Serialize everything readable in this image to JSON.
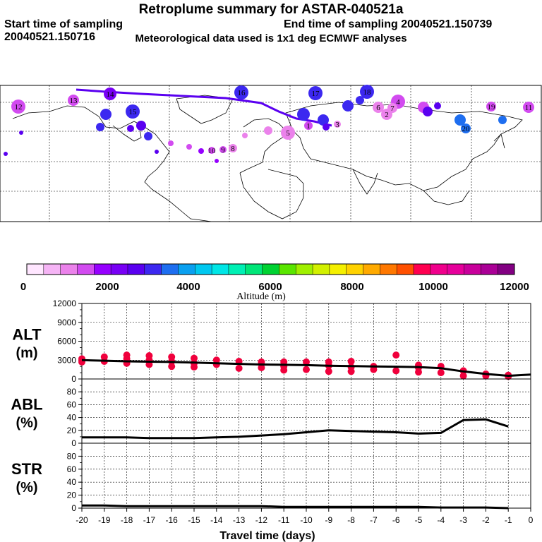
{
  "header": {
    "title": "Retroplume summary for ASTAR-040521a",
    "start_label": "Start time of sampling 20040521.150716",
    "end_label": "End time of sampling 20040521.150739",
    "met_label": "Meteorological data used is 1x1 deg ECMWF analyses"
  },
  "colorbar": {
    "colors": [
      "#ffe6ff",
      "#f5b4f5",
      "#eb82eb",
      "#d24bf0",
      "#9600ff",
      "#7800f5",
      "#5a00f0",
      "#3c28f0",
      "#1e6ef0",
      "#0aa0f0",
      "#00c8f0",
      "#00e6e6",
      "#00f0b4",
      "#00e678",
      "#00d232",
      "#5ae600",
      "#a0f000",
      "#d2f000",
      "#f5f000",
      "#ffd200",
      "#ffaa00",
      "#ff7800",
      "#ff5000",
      "#ff0050",
      "#f0008c",
      "#e6009b",
      "#c8009b",
      "#aa0096",
      "#820082"
    ],
    "tick_labels": [
      "0",
      "2000",
      "4000",
      "6000",
      "8000",
      "10000",
      "12000"
    ],
    "axis_label": "Altitude (m)"
  },
  "map": {
    "cluster_labels": [
      "12",
      "13",
      "14",
      "15",
      "16",
      "17",
      "18",
      "1",
      "2",
      "3",
      "4",
      "5",
      "6",
      "7",
      "8",
      "9",
      "10",
      "11",
      "19",
      "20"
    ]
  },
  "chart_data": [
    {
      "type": "line",
      "panel": "ALT",
      "ylabel_line1": "ALT",
      "ylabel_line2": "(m)",
      "ylim": [
        0,
        12000
      ],
      "yticks": [
        "12000",
        "9000",
        "6000",
        "3000",
        "0"
      ],
      "x": [
        -20,
        -19,
        -18,
        -17,
        -16,
        -15,
        -14,
        -13,
        -12,
        -11,
        -10,
        -9,
        -8,
        -7,
        -6,
        -5,
        -4,
        -3,
        -2,
        -1,
        0
      ],
      "series": [
        {
          "name": "mean altitude",
          "values": [
            3000,
            2900,
            2800,
            2750,
            2700,
            2600,
            2500,
            2400,
            2300,
            2250,
            2200,
            2100,
            2050,
            2000,
            1950,
            1900,
            1700,
            1200,
            800,
            500,
            700
          ]
        }
      ],
      "points": [
        {
          "x": -20,
          "y": 3200
        },
        {
          "x": -20,
          "y": 2700
        },
        {
          "x": -19,
          "y": 3500
        },
        {
          "x": -19,
          "y": 2800
        },
        {
          "x": -18,
          "y": 3800
        },
        {
          "x": -18,
          "y": 3200
        },
        {
          "x": -18,
          "y": 2500
        },
        {
          "x": -17,
          "y": 3700
        },
        {
          "x": -17,
          "y": 3000
        },
        {
          "x": -17,
          "y": 2300
        },
        {
          "x": -16,
          "y": 3500
        },
        {
          "x": -16,
          "y": 2800
        },
        {
          "x": -16,
          "y": 2000
        },
        {
          "x": -15,
          "y": 3300
        },
        {
          "x": -15,
          "y": 2500
        },
        {
          "x": -15,
          "y": 1900
        },
        {
          "x": -14,
          "y": 3000
        },
        {
          "x": -14,
          "y": 2300
        },
        {
          "x": -13,
          "y": 2800
        },
        {
          "x": -13,
          "y": 1700
        },
        {
          "x": -12,
          "y": 2700
        },
        {
          "x": -12,
          "y": 1800
        },
        {
          "x": -11,
          "y": 2700
        },
        {
          "x": -11,
          "y": 2000
        },
        {
          "x": -11,
          "y": 1400
        },
        {
          "x": -10,
          "y": 2700
        },
        {
          "x": -10,
          "y": 1500
        },
        {
          "x": -9,
          "y": 2700
        },
        {
          "x": -9,
          "y": 2100
        },
        {
          "x": -9,
          "y": 1200
        },
        {
          "x": -8,
          "y": 2800
        },
        {
          "x": -8,
          "y": 1900
        },
        {
          "x": -8,
          "y": 1200
        },
        {
          "x": -7,
          "y": 2000
        },
        {
          "x": -7,
          "y": 1500
        },
        {
          "x": -6,
          "y": 3800
        },
        {
          "x": -6,
          "y": 1300
        },
        {
          "x": -5,
          "y": 2200
        },
        {
          "x": -5,
          "y": 1800
        },
        {
          "x": -5,
          "y": 1100
        },
        {
          "x": -4,
          "y": 2000
        },
        {
          "x": -4,
          "y": 1000
        },
        {
          "x": -3,
          "y": 1300
        },
        {
          "x": -3,
          "y": 500
        },
        {
          "x": -2,
          "y": 800
        },
        {
          "x": -2,
          "y": 500
        },
        {
          "x": -1,
          "y": 600
        },
        {
          "x": -1,
          "y": 400
        }
      ]
    },
    {
      "type": "line",
      "panel": "ABL",
      "ylabel_line1": "ABL",
      "ylabel_line2": "(%)",
      "ylim": [
        0,
        100
      ],
      "yticks": [
        "80",
        "60",
        "40",
        "20",
        "0"
      ],
      "x": [
        -20,
        -19,
        -18,
        -17,
        -16,
        -15,
        -14,
        -13,
        -12,
        -11,
        -10,
        -9,
        -8,
        -7,
        -6,
        -5,
        -4,
        -3,
        -2,
        -1
      ],
      "series": [
        {
          "name": "ABL fraction",
          "values": [
            9,
            9,
            9,
            8,
            8,
            8,
            9,
            10,
            12,
            14,
            17,
            20,
            19,
            18,
            17,
            15,
            16,
            36,
            37,
            26
          ]
        }
      ]
    },
    {
      "type": "line",
      "panel": "STR",
      "ylabel_line1": "STR",
      "ylabel_line2": "(%)",
      "ylim": [
        0,
        100
      ],
      "yticks": [
        "80",
        "60",
        "40",
        "20",
        "0"
      ],
      "x": [
        -20,
        -19,
        -18,
        -17,
        -16,
        -15,
        -14,
        -13,
        -12,
        -11,
        -10,
        -9,
        -8,
        -7,
        -6,
        -5,
        -4,
        -3,
        -2,
        -1
      ],
      "series": [
        {
          "name": "stratospheric fraction",
          "values": [
            4,
            4,
            3,
            3,
            3,
            3,
            3,
            3,
            3,
            2,
            2,
            2,
            2,
            2,
            2,
            2,
            1,
            1,
            1,
            0
          ]
        }
      ],
      "xticks": [
        "-20",
        "-19",
        "-18",
        "-17",
        "-16",
        "-15",
        "-14",
        "-13",
        "-12",
        "-11",
        "-10",
        "-9",
        "-8",
        "-7",
        "-6",
        "-5",
        "-4",
        "-3",
        "-2",
        "-1",
        "0"
      ],
      "xlabel": "Travel time (days)"
    }
  ]
}
